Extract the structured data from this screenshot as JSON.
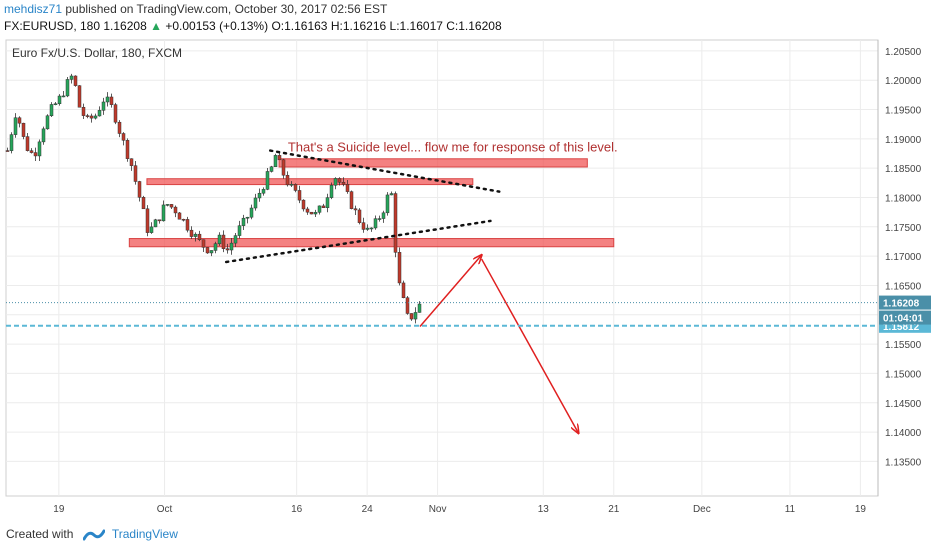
{
  "header": {
    "author": "mehdisz71",
    "published_text": "published on TradingView.com, October 30, 2017 02:56 EST",
    "symbol_line": "FX:EURUSD, 180",
    "last": "1.16208",
    "change_symbol": "▲",
    "change": "+0.00153 (+0.13%)",
    "ohlc": "O:1.16163 H:1.16216 L:1.16017 C:1.16208"
  },
  "footer": {
    "created_with": "Created with",
    "brand": "TradingView"
  },
  "chart_data": {
    "type": "candlestick",
    "title": "Euro Fx/U.S. Dollar, 180, FXCM",
    "ylim": [
      1.132,
      1.206
    ],
    "xlim": [
      "2017-09-13",
      "2017-12-21"
    ],
    "y_ticks": [
      "1.13500",
      "1.14000",
      "1.14500",
      "1.15000",
      "1.15500",
      "1.16000",
      "1.16500",
      "1.17000",
      "1.17500",
      "1.18000",
      "1.18500",
      "1.19000",
      "1.19500",
      "1.20000",
      "1.20500"
    ],
    "x_ticks": [
      {
        "label": "19",
        "date": "2017-09-19"
      },
      {
        "label": "Oct",
        "date": "2017-10-01"
      },
      {
        "label": "16",
        "date": "2017-10-16"
      },
      {
        "label": "24",
        "date": "2017-10-24"
      },
      {
        "label": "Nov",
        "date": "2017-11-01"
      },
      {
        "label": "13",
        "date": "2017-11-13"
      },
      {
        "label": "21",
        "date": "2017-11-21"
      },
      {
        "label": "Dec",
        "date": "2017-12-01"
      },
      {
        "label": "11",
        "date": "2017-12-11"
      },
      {
        "label": "19",
        "date": "2017-12-19"
      }
    ],
    "grid": true,
    "up_color": "#26a65b",
    "down_color": "#c0392b",
    "price_path": [
      [
        "2017-09-13",
        1.188
      ],
      [
        "2017-09-14",
        1.195
      ],
      [
        "2017-09-15",
        1.189
      ],
      [
        "2017-09-16",
        1.187
      ],
      [
        "2017-09-17",
        1.192
      ],
      [
        "2017-09-18",
        1.195
      ],
      [
        "2017-09-19",
        1.197
      ],
      [
        "2017-09-20",
        1.2
      ],
      [
        "2017-09-20 12:00",
        1.201
      ],
      [
        "2017-09-21",
        1.196
      ],
      [
        "2017-09-22",
        1.193
      ],
      [
        "2017-09-23",
        1.194
      ],
      [
        "2017-09-24",
        1.197
      ],
      [
        "2017-09-25",
        1.195
      ],
      [
        "2017-09-26",
        1.19
      ],
      [
        "2017-09-27",
        1.186
      ],
      [
        "2017-09-28",
        1.18
      ],
      [
        "2017-09-28 12:00",
        1.177
      ],
      [
        "2017-09-29",
        1.174
      ],
      [
        "2017-09-30",
        1.176
      ],
      [
        "2017-10-01",
        1.179
      ],
      [
        "2017-10-02",
        1.178
      ],
      [
        "2017-10-03",
        1.176
      ],
      [
        "2017-10-04",
        1.174
      ],
      [
        "2017-10-05",
        1.172
      ],
      [
        "2017-10-06",
        1.171
      ],
      [
        "2017-10-07",
        1.173
      ],
      [
        "2017-10-08",
        1.171
      ],
      [
        "2017-10-09",
        1.174
      ],
      [
        "2017-10-10",
        1.176
      ],
      [
        "2017-10-11",
        1.179
      ],
      [
        "2017-10-12",
        1.182
      ],
      [
        "2017-10-13",
        1.185
      ],
      [
        "2017-10-13 12:00",
        1.1875
      ],
      [
        "2017-10-14",
        1.185
      ],
      [
        "2017-10-15",
        1.182
      ],
      [
        "2017-10-16",
        1.18
      ],
      [
        "2017-10-17",
        1.178
      ],
      [
        "2017-10-18",
        1.177
      ],
      [
        "2017-10-19",
        1.179
      ],
      [
        "2017-10-20",
        1.184
      ],
      [
        "2017-10-21",
        1.182
      ],
      [
        "2017-10-22",
        1.179
      ],
      [
        "2017-10-23",
        1.176
      ],
      [
        "2017-10-24",
        1.174
      ],
      [
        "2017-10-25",
        1.176
      ],
      [
        "2017-10-26",
        1.179
      ],
      [
        "2017-10-26 12:00",
        1.1825
      ],
      [
        "2017-10-27",
        1.172
      ],
      [
        "2017-10-27 12:00",
        1.165
      ],
      [
        "2017-10-28",
        1.162
      ],
      [
        "2017-10-28 12:00",
        1.159
      ],
      [
        "2017-10-29",
        1.16
      ],
      [
        "2017-10-30",
        1.1621
      ]
    ],
    "price_lines": [
      {
        "value": 1.16208,
        "label": "1.16208",
        "color": "#4a8fa8",
        "style": "dotted"
      },
      {
        "value": 1.15812,
        "label": "1.15812",
        "color": "#5bb8d6",
        "style": "dashed"
      }
    ],
    "countdown_label": "01:04:01",
    "zones": [
      {
        "x1": "2017-10-14",
        "x2": "2017-11-18",
        "y1": 1.1852,
        "y2": 1.1866
      },
      {
        "x1": "2017-09-29",
        "x2": "2017-11-05",
        "y1": 1.1822,
        "y2": 1.1832
      },
      {
        "x1": "2017-09-27",
        "x2": "2017-11-21",
        "y1": 1.1716,
        "y2": 1.173
      }
    ],
    "trendlines": [
      {
        "from": [
          "2017-10-13",
          1.188
        ],
        "to": [
          "2017-11-08",
          1.181
        ],
        "style": "dotted"
      },
      {
        "from": [
          "2017-10-08",
          1.169
        ],
        "to": [
          "2017-11-07",
          1.176
        ],
        "style": "dotted"
      }
    ],
    "arrows": [
      {
        "from": [
          "2017-10-30",
          1.158
        ],
        "to": [
          "2017-11-06",
          1.1702
        ]
      },
      {
        "from": [
          "2017-11-06",
          1.1695
        ],
        "to": [
          "2017-11-17",
          1.1398
        ]
      }
    ],
    "annotation": {
      "text": "That's a Suicide level... flow me for response of this level.",
      "date": "2017-10-15",
      "value": 1.1878
    }
  }
}
